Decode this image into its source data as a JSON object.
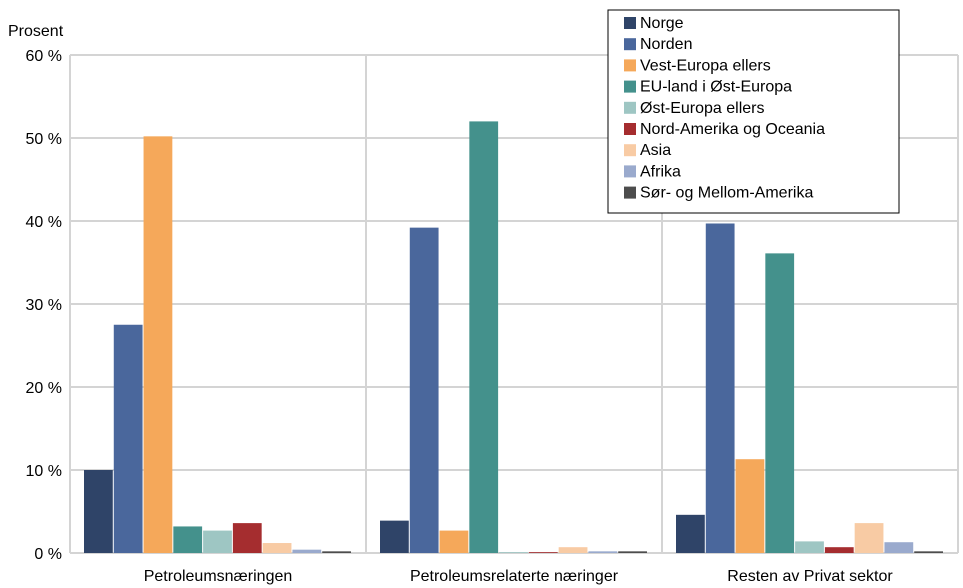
{
  "chart_data": {
    "type": "bar",
    "title": "",
    "ylabel": "Prosent",
    "xlabel": "",
    "ylim": [
      0,
      60
    ],
    "yticks": [
      "0 %",
      "10 %",
      "20 %",
      "30 %",
      "40 %",
      "50 %",
      "60 %"
    ],
    "grid": true,
    "legend_position": "top-right",
    "categories": [
      "Petroleumsnæringen",
      "Petroleumsrelaterte næringer",
      "Resten av Privat sektor"
    ],
    "series": [
      {
        "name": "Norge",
        "color": "#2f4468",
        "values": [
          10.0,
          3.9,
          4.6
        ]
      },
      {
        "name": "Norden",
        "color": "#4a679c",
        "values": [
          27.5,
          39.2,
          39.7
        ]
      },
      {
        "name": "Vest-Europa ellers",
        "color": "#f5a85a",
        "values": [
          50.2,
          2.7,
          11.3
        ]
      },
      {
        "name": "EU-land i Øst-Europa",
        "color": "#44918c",
        "values": [
          3.2,
          52.0,
          36.1
        ]
      },
      {
        "name": "Øst-Europa ellers",
        "color": "#9ec6c3",
        "values": [
          2.7,
          0.1,
          1.4
        ]
      },
      {
        "name": "Nord-Amerika og Oceania",
        "color": "#a52d2f",
        "values": [
          3.6,
          0.1,
          0.7
        ]
      },
      {
        "name": "Asia",
        "color": "#f8cba4",
        "values": [
          1.2,
          0.7,
          3.6
        ]
      },
      {
        "name": "Afrika",
        "color": "#9aaacd",
        "values": [
          0.4,
          0.2,
          1.3
        ]
      },
      {
        "name": "Sør- og Mellom-Amerika",
        "color": "#4d4d4d",
        "values": [
          0.2,
          0.2,
          0.2
        ]
      }
    ]
  }
}
